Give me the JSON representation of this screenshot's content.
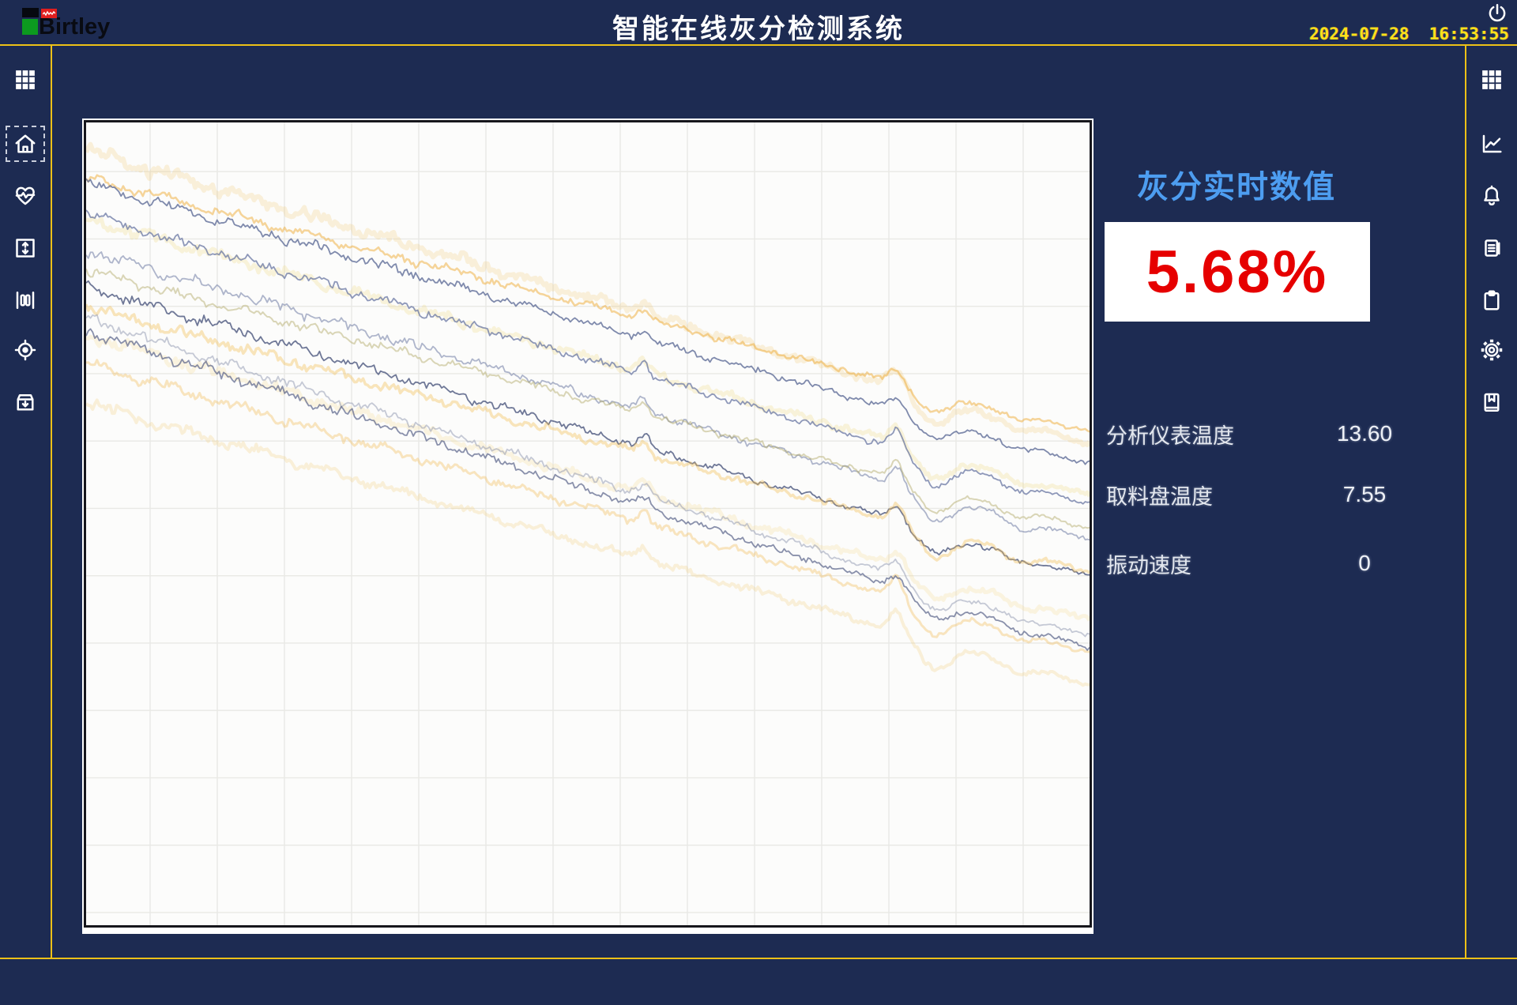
{
  "app": {
    "title": "智能在线灰分检测系统",
    "logo_text": "Birtley",
    "datetime": "2024-07-28  16:53:55"
  },
  "left_sidebar": {
    "items": [
      {
        "name": "apps-grid"
      },
      {
        "name": "home",
        "selected": true
      },
      {
        "name": "heartbeat-monitor"
      },
      {
        "name": "vertical-range"
      },
      {
        "name": "material-columns"
      },
      {
        "name": "target-position"
      },
      {
        "name": "archive-download"
      }
    ]
  },
  "right_sidebar": {
    "items": [
      {
        "name": "apps-grid"
      },
      {
        "name": "trend-chart"
      },
      {
        "name": "alarm-bell"
      },
      {
        "name": "report-document"
      },
      {
        "name": "task-clipboard"
      },
      {
        "name": "settings-gear"
      },
      {
        "name": "bookmark-save"
      }
    ]
  },
  "panel": {
    "title": "灰分实时数值",
    "ash_value": "5.68%",
    "readings": [
      {
        "label": "分析仪表温度",
        "value": "13.60"
      },
      {
        "label": "取料盘温度",
        "value": "7.55"
      },
      {
        "label": "振动速度",
        "value": "0"
      }
    ]
  },
  "colors": {
    "background": "#1d2b52",
    "accent_line": "#edc117",
    "panel_title_blue": "#4d9df0",
    "ash_value_red": "#e60000",
    "clock_yellow": "#ffe11a"
  },
  "chart": {
    "type": "line",
    "title": "",
    "grid_spacing": 85,
    "x_offset": 81,
    "y_offset": 62,
    "note": "multi-channel noisy sensor traces descending left-to-right, dip at t=0.56 and dip+hump near t=0.81-0.85",
    "series": [
      {
        "color": "#f2bf55",
        "width": 6,
        "opacity": 0.2,
        "y0": 0.035,
        "y1": 0.4,
        "amp": 15,
        "seed": 11
      },
      {
        "color": "#eeab38",
        "width": 2.5,
        "opacity": 0.5,
        "y0": 0.07,
        "y1": 0.385,
        "amp": 11,
        "seed": 22
      },
      {
        "color": "#5f6d99",
        "width": 1.8,
        "opacity": 0.8,
        "y0": 0.075,
        "y1": 0.425,
        "amp": 12,
        "seed": 33
      },
      {
        "color": "#f0d98a",
        "width": 5,
        "opacity": 0.3,
        "y0": 0.12,
        "y1": 0.465,
        "amp": 13,
        "seed": 44
      },
      {
        "color": "#6a77a3",
        "width": 1.8,
        "opacity": 0.75,
        "y0": 0.115,
        "y1": 0.475,
        "amp": 12,
        "seed": 55
      },
      {
        "color": "#7e89ad",
        "width": 1.8,
        "opacity": 0.62,
        "y0": 0.16,
        "y1": 0.52,
        "amp": 12,
        "seed": 66
      },
      {
        "color": "#b3ab6a",
        "width": 2,
        "opacity": 0.48,
        "y0": 0.185,
        "y1": 0.505,
        "amp": 11,
        "seed": 77
      },
      {
        "color": "#47527b",
        "width": 1.8,
        "opacity": 0.78,
        "y0": 0.205,
        "y1": 0.565,
        "amp": 12,
        "seed": 88
      },
      {
        "color": "#f1bc52",
        "width": 3.5,
        "opacity": 0.38,
        "y0": 0.23,
        "y1": 0.56,
        "amp": 12,
        "seed": 99
      },
      {
        "color": "#f4d88e",
        "width": 5,
        "opacity": 0.26,
        "y0": 0.265,
        "y1": 0.62,
        "amp": 13,
        "seed": 111
      },
      {
        "color": "#8d96b0",
        "width": 1.8,
        "opacity": 0.5,
        "y0": 0.245,
        "y1": 0.64,
        "amp": 12,
        "seed": 122
      },
      {
        "color": "#efb64a",
        "width": 3,
        "opacity": 0.34,
        "y0": 0.3,
        "y1": 0.66,
        "amp": 12,
        "seed": 133
      },
      {
        "color": "#525d84",
        "width": 1.8,
        "opacity": 0.68,
        "y0": 0.26,
        "y1": 0.655,
        "amp": 12,
        "seed": 144
      },
      {
        "color": "#f3c768",
        "width": 4,
        "opacity": 0.24,
        "y0": 0.35,
        "y1": 0.7,
        "amp": 12,
        "seed": 155
      }
    ]
  }
}
